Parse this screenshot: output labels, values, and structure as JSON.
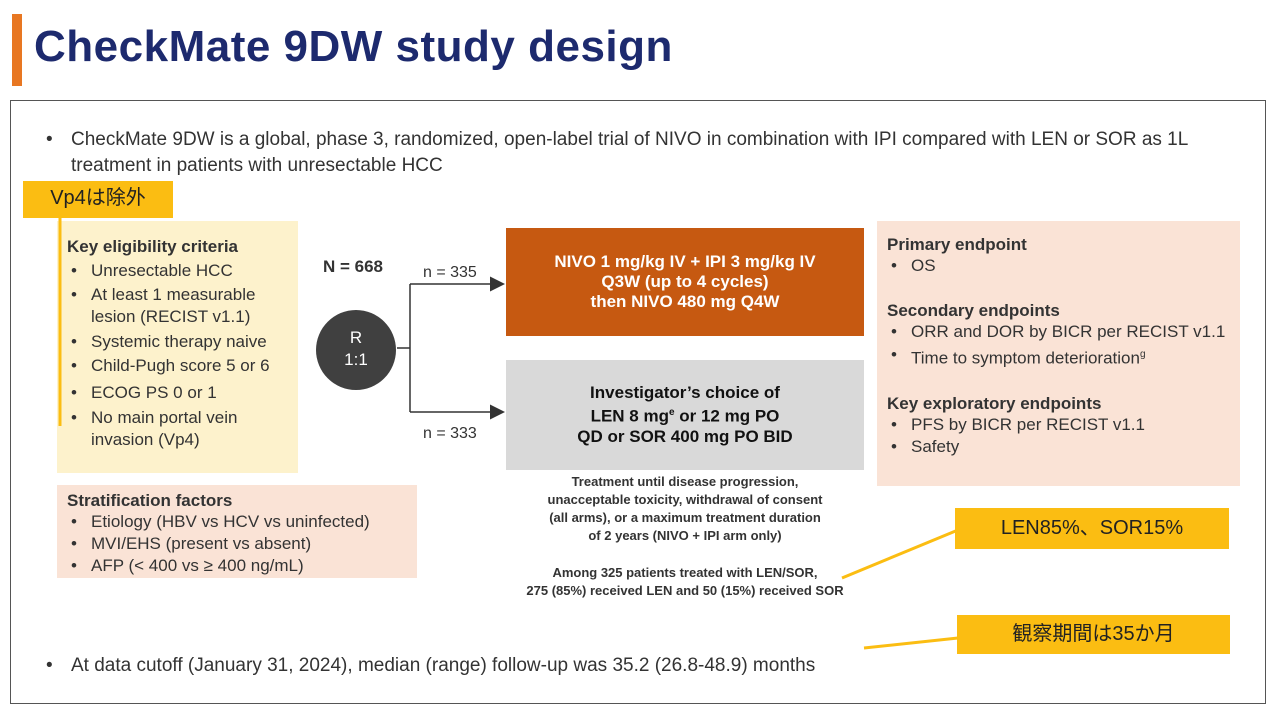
{
  "title": "CheckMate 9DW study design",
  "intro": "CheckMate 9DW is a global, phase 3, randomized, open-label trial of NIVO in combination with IPI compared with LEN or SOR as 1L treatment in patients with unresectable HCC",
  "eligibility": {
    "header": "Key eligibility criteria",
    "items": [
      "Unresectable HCC",
      "At least 1 measurable lesion (RECIST v1.1)",
      "Systemic therapy naive",
      "Child-Pugh score 5 or 6",
      "ECOG PS 0 or 1",
      "No main portal vein invasion (Vp4)"
    ]
  },
  "stratification": {
    "header": "Stratification factors",
    "items": [
      "Etiology (HBV vs HCV vs uninfected)",
      "MVI/EHS (present vs absent)",
      "AFP (< 400 vs ≥ 400 ng/mL)"
    ]
  },
  "randomization": {
    "n_total": "N = 668",
    "r_label": "R",
    "ratio": "1:1",
    "n_arm1": "n = 335",
    "n_arm2": "n = 333"
  },
  "arm_nivo": {
    "line1": "NIVO 1 mg/kg IV + IPI 3 mg/kg IV",
    "line2": "Q3W (up to 4 cycles)",
    "line3": "then NIVO 480 mg Q4W"
  },
  "arm_control": {
    "line1": "Investigator’s choice of",
    "line2a": "LEN 8 mg",
    "sup": "e",
    "line2b": " or 12 mg PO",
    "line3": "QD or SOR 400 mg PO BID"
  },
  "treatment_note": {
    "l1": "Treatment until disease progression,",
    "l2": "unacceptable toxicity, withdrawal of consent",
    "l3": "(all arms), or a maximum treatment duration",
    "l4": "of 2 years (NIVO + IPI arm only)"
  },
  "len_sor_note": {
    "l1": "Among 325 patients treated with LEN/SOR,",
    "l2": "275 (85%) received LEN and 50 (15%) received SOR"
  },
  "endpoints": {
    "primary_header": "Primary endpoint",
    "primary_items": [
      "OS"
    ],
    "secondary_header": "Secondary endpoints",
    "secondary_items": [
      "ORR and DOR by BICR per RECIST v1.1",
      "Time to symptom deterioration"
    ],
    "secondary_sup": "g",
    "exploratory_header": "Key exploratory endpoints",
    "exploratory_items": [
      "PFS by BICR per RECIST v1.1",
      "Safety"
    ]
  },
  "followup": "At data cutoff (January 31, 2024), median (range) follow-up was 35.2 (26.8-48.9) months",
  "callouts": {
    "vp4": "Vp4は除外",
    "len_sor": "LEN85%、SOR15%",
    "observation": "観察期間は35か月"
  },
  "bullet_glyph": "•",
  "colors": {
    "title": "#1d2a6e",
    "accent": "#e87722",
    "nivo_box": "#c65911",
    "control_box": "#d9d9d9",
    "callout": "#fbbd12",
    "eligibility_bg": "#fdf2cc",
    "endpoint_bg": "#fae3d6"
  }
}
